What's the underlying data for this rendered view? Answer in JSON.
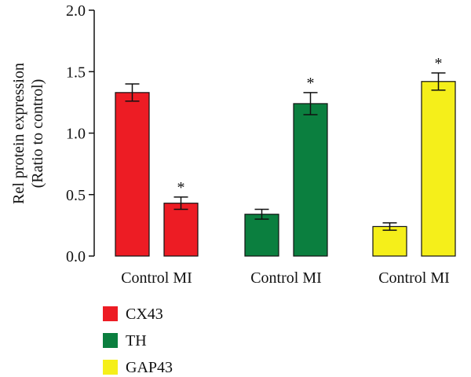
{
  "chart_data": {
    "type": "bar",
    "ylabel_lines": [
      "Rel protein expression",
      "(Ratio to control)"
    ],
    "ylim": [
      0,
      2.0
    ],
    "yticks": [
      "0.0",
      "0.5",
      "1.0",
      "1.5",
      "2.0"
    ],
    "ytick_values": [
      0,
      0.5,
      1.0,
      1.5,
      2.0
    ],
    "groups": [
      {
        "name": "CX43",
        "category_label": "Control MI",
        "color": "#ed1c24",
        "bars": [
          {
            "label": "Control",
            "value": 1.33,
            "error": 0.07,
            "star": ""
          },
          {
            "label": "MI",
            "value": 0.43,
            "error": 0.05,
            "star": "*"
          }
        ]
      },
      {
        "name": "TH",
        "category_label": "Control MI",
        "color": "#0b7f3f",
        "bars": [
          {
            "label": "Control",
            "value": 0.34,
            "error": 0.04,
            "star": ""
          },
          {
            "label": "MI",
            "value": 1.24,
            "error": 0.09,
            "star": "*"
          }
        ]
      },
      {
        "name": "GAP43",
        "category_label": "Control MI",
        "color": "#f5ef1a",
        "bars": [
          {
            "label": "Control",
            "value": 0.24,
            "error": 0.03,
            "star": ""
          },
          {
            "label": "MI",
            "value": 1.42,
            "error": 0.07,
            "star": "*"
          }
        ]
      }
    ],
    "legend": [
      {
        "label": "CX43",
        "color": "#ed1c24"
      },
      {
        "label": "TH",
        "color": "#0b7f3f"
      },
      {
        "label": "GAP43",
        "color": "#f5ef1a"
      }
    ],
    "legend_position": "bottom-left",
    "grid": false
  }
}
